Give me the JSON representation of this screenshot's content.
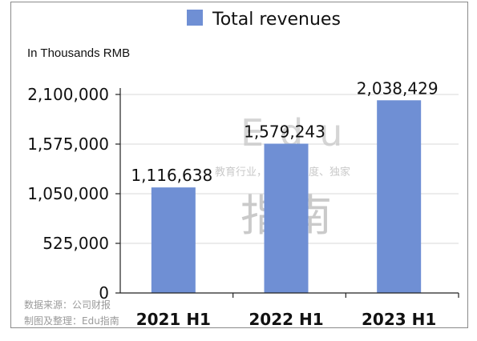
{
  "chart_data": {
    "type": "bar",
    "unit_label": "In Thousands RMB",
    "categories": [
      "2021 H1",
      "2022 H1",
      "2023 H1"
    ],
    "series": [
      {
        "name": "Total revenues",
        "values": [
          1116638,
          1579243,
          2038429
        ],
        "color": "#6f8fd4"
      }
    ],
    "data_labels": [
      "1,116,638",
      "1,579,243",
      "2,038,429"
    ],
    "y_ticks": [
      "0",
      "525,000",
      "1,050,000",
      "1,575,000",
      "2,100,000"
    ],
    "ylim": [
      0,
      2100000
    ],
    "grid": true,
    "legend_position": "top"
  },
  "watermark": {
    "line1": "Edu",
    "tagline": "教育行业，前沿、深度、独家",
    "line2": "指南"
  },
  "credits": {
    "source": "数据来源：公司财报",
    "made_by": "制图及整理：Edu指南"
  }
}
